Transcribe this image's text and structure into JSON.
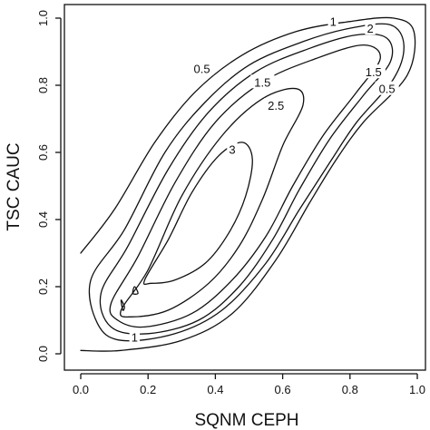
{
  "chart_data": {
    "type": "contour",
    "xlabel": "SQNM CEPH",
    "ylabel": "TSC CAUC",
    "xlim": [
      0.0,
      1.0
    ],
    "ylim": [
      0.0,
      1.0
    ],
    "xticks": [
      "0.0",
      "0.2",
      "0.4",
      "0.6",
      "0.8",
      "1.0"
    ],
    "yticks": [
      "0.0",
      "0.2",
      "0.4",
      "0.6",
      "0.8",
      "1.0"
    ],
    "grid": false,
    "levels": [
      {
        "level": "0.5",
        "points": [
          [
            0.0,
            0.3
          ],
          [
            0.1,
            0.43
          ],
          [
            0.22,
            0.63
          ],
          [
            0.34,
            0.78
          ],
          [
            0.48,
            0.89
          ],
          [
            0.64,
            0.96
          ],
          [
            0.8,
            0.99
          ],
          [
            0.93,
            1.0
          ],
          [
            0.99,
            0.96
          ],
          [
            0.97,
            0.83
          ],
          [
            0.84,
            0.69
          ],
          [
            0.76,
            0.58
          ],
          [
            0.68,
            0.45
          ],
          [
            0.58,
            0.28
          ],
          [
            0.45,
            0.12
          ],
          [
            0.3,
            0.04
          ],
          [
            0.12,
            0.01
          ],
          [
            0.0,
            0.01
          ]
        ]
      },
      {
        "level": "1",
        "points": [
          [
            0.03,
            0.22
          ],
          [
            0.13,
            0.37
          ],
          [
            0.25,
            0.6
          ],
          [
            0.37,
            0.75
          ],
          [
            0.5,
            0.86
          ],
          [
            0.66,
            0.93
          ],
          [
            0.8,
            0.97
          ],
          [
            0.92,
            0.98
          ],
          [
            0.96,
            0.92
          ],
          [
            0.93,
            0.82
          ],
          [
            0.82,
            0.69
          ],
          [
            0.74,
            0.57
          ],
          [
            0.65,
            0.43
          ],
          [
            0.55,
            0.27
          ],
          [
            0.42,
            0.13
          ],
          [
            0.28,
            0.06
          ],
          [
            0.12,
            0.04
          ],
          [
            0.05,
            0.09
          ],
          [
            0.03,
            0.22
          ]
        ]
      },
      {
        "level": "1.5",
        "points": [
          [
            0.06,
            0.18
          ],
          [
            0.14,
            0.32
          ],
          [
            0.26,
            0.55
          ],
          [
            0.38,
            0.72
          ],
          [
            0.52,
            0.84
          ],
          [
            0.68,
            0.91
          ],
          [
            0.82,
            0.95
          ],
          [
            0.91,
            0.94
          ],
          [
            0.92,
            0.87
          ],
          [
            0.84,
            0.77
          ],
          [
            0.74,
            0.64
          ],
          [
            0.65,
            0.49
          ],
          [
            0.57,
            0.34
          ],
          [
            0.47,
            0.2
          ],
          [
            0.35,
            0.1
          ],
          [
            0.2,
            0.06
          ],
          [
            0.09,
            0.08
          ],
          [
            0.06,
            0.18
          ]
        ]
      },
      {
        "level": "2",
        "points": [
          [
            0.09,
            0.15
          ],
          [
            0.17,
            0.29
          ],
          [
            0.28,
            0.51
          ],
          [
            0.4,
            0.69
          ],
          [
            0.54,
            0.81
          ],
          [
            0.7,
            0.88
          ],
          [
            0.84,
            0.92
          ],
          [
            0.89,
            0.88
          ],
          [
            0.82,
            0.78
          ],
          [
            0.72,
            0.65
          ],
          [
            0.63,
            0.5
          ],
          [
            0.55,
            0.35
          ],
          [
            0.45,
            0.22
          ],
          [
            0.33,
            0.12
          ],
          [
            0.19,
            0.08
          ],
          [
            0.11,
            0.1
          ],
          [
            0.09,
            0.15
          ]
        ]
      },
      {
        "level": "2.5",
        "points": [
          [
            0.12,
            0.13
          ],
          [
            0.2,
            0.25
          ],
          [
            0.3,
            0.47
          ],
          [
            0.42,
            0.65
          ],
          [
            0.54,
            0.76
          ],
          [
            0.64,
            0.79
          ],
          [
            0.66,
            0.74
          ],
          [
            0.6,
            0.62
          ],
          [
            0.54,
            0.46
          ],
          [
            0.47,
            0.32
          ],
          [
            0.38,
            0.21
          ],
          [
            0.26,
            0.13
          ],
          [
            0.15,
            0.11
          ],
          [
            0.12,
            0.13
          ]
        ]
      },
      {
        "level": "3",
        "points": [
          [
            0.19,
            0.22
          ],
          [
            0.26,
            0.34
          ],
          [
            0.33,
            0.48
          ],
          [
            0.41,
            0.59
          ],
          [
            0.48,
            0.63
          ],
          [
            0.51,
            0.58
          ],
          [
            0.49,
            0.47
          ],
          [
            0.44,
            0.36
          ],
          [
            0.37,
            0.27
          ],
          [
            0.28,
            0.22
          ],
          [
            0.21,
            0.21
          ],
          [
            0.19,
            0.22
          ]
        ]
      },
      {
        "level": "",
        "points": [
          [
            0.12,
            0.16
          ],
          [
            0.13,
            0.14
          ],
          [
            0.125,
            0.13
          ],
          [
            0.12,
            0.16
          ]
        ]
      },
      {
        "level": "",
        "points": [
          [
            0.16,
            0.2
          ],
          [
            0.17,
            0.18
          ],
          [
            0.155,
            0.18
          ],
          [
            0.16,
            0.2
          ]
        ]
      }
    ],
    "contour_labels": [
      {
        "text": "0.5",
        "x": 0.36,
        "y": 0.85
      },
      {
        "text": "1.5",
        "x": 0.54,
        "y": 0.81
      },
      {
        "text": "2.5",
        "x": 0.58,
        "y": 0.74
      },
      {
        "text": "3",
        "x": 0.45,
        "y": 0.61
      },
      {
        "text": "1",
        "x": 0.75,
        "y": 0.99
      },
      {
        "text": "2",
        "x": 0.86,
        "y": 0.97
      },
      {
        "text": "1.5",
        "x": 0.87,
        "y": 0.84
      },
      {
        "text": "0.5",
        "x": 0.91,
        "y": 0.79
      },
      {
        "text": "1",
        "x": 0.16,
        "y": 0.05
      }
    ]
  }
}
